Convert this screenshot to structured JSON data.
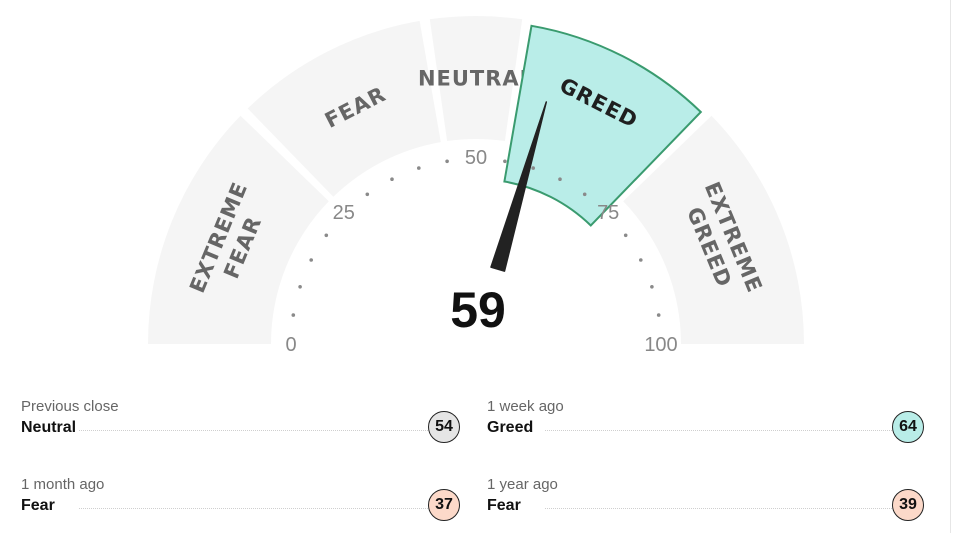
{
  "gauge": {
    "score": "59",
    "value": 59,
    "scale_min": 0,
    "scale_max": 100,
    "active_segment": "greed",
    "segments": [
      {
        "key": "extreme-fear",
        "lines": [
          "EXTREME",
          "FEAR"
        ],
        "from": 0,
        "to": 25
      },
      {
        "key": "fear",
        "lines": [
          "FEAR"
        ],
        "from": 25,
        "to": 45
      },
      {
        "key": "neutral",
        "lines": [
          "NEUTRAL"
        ],
        "from": 45,
        "to": 55
      },
      {
        "key": "greed",
        "lines": [
          "GREED"
        ],
        "from": 55,
        "to": 75
      },
      {
        "key": "extreme-greed",
        "lines": [
          "EXTREME",
          "GREED"
        ],
        "from": 75,
        "to": 100
      }
    ],
    "tick_labels": [
      "0",
      "25",
      "50",
      "75",
      "100"
    ],
    "colors": {
      "segment_inactive": "#f5f5f5",
      "segment_active": "#b9ede8",
      "segment_active_border": "#3a9b6f",
      "needle": "#222222",
      "tick_dot": "#8a8a8a"
    }
  },
  "history": [
    {
      "caption": "Previous close",
      "rating": "Neutral",
      "score": "54",
      "badge_color": "#e5e5e5"
    },
    {
      "caption": "1 week ago",
      "rating": "Greed",
      "score": "64",
      "badge_color": "#b9ede8"
    },
    {
      "caption": "1 month ago",
      "rating": "Fear",
      "score": "37",
      "badge_color": "#fcd9c9"
    },
    {
      "caption": "1 year ago",
      "rating": "Fear",
      "score": "39",
      "badge_color": "#fcd9c9"
    }
  ]
}
